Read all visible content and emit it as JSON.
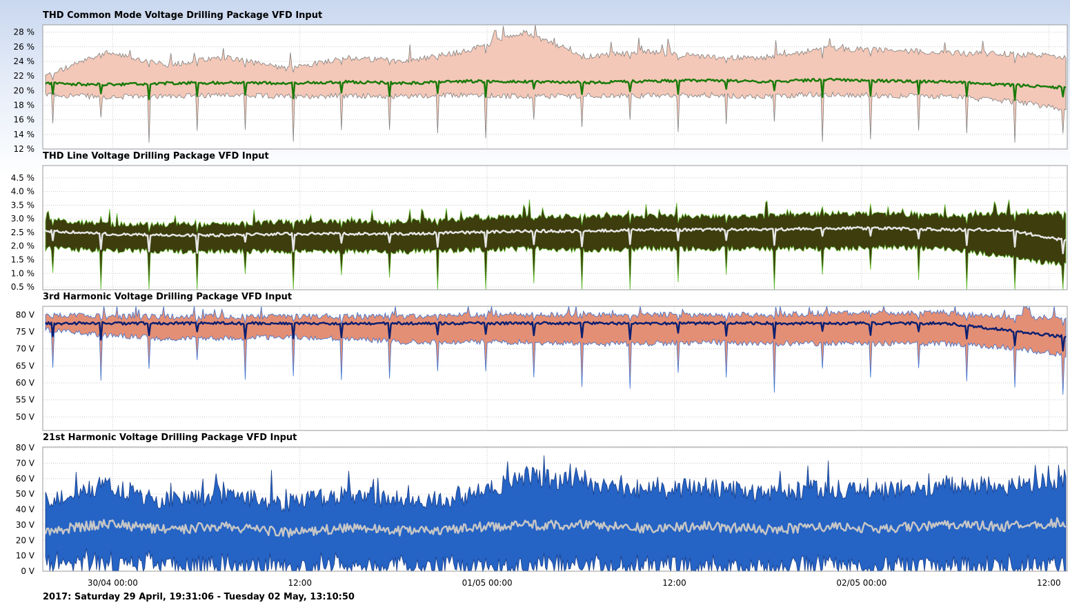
{
  "footer": "2017: Saturday 29 April, 19:31:06 - Tuesday 02 May, 13:10:50",
  "colors": {
    "plot_bg": "#ffffff",
    "grid": "#c8c8c8",
    "frame": "#9a9a9a"
  },
  "x_axis": {
    "start": "2017-04-29 19:31:06",
    "end": "2017-05-02 13:10:50",
    "ticks": [
      {
        "time": "2017-04-30 00:00",
        "label": "30/04 00:00"
      },
      {
        "time": "2017-04-30 12:00",
        "label": "12:00"
      },
      {
        "time": "2017-05-01 00:00",
        "label": "01/05 00:00"
      },
      {
        "time": "2017-05-01 12:00",
        "label": "12:00"
      },
      {
        "time": "2017-05-02 00:00",
        "label": "02/05 00:00"
      },
      {
        "time": "2017-05-02 12:00",
        "label": "12:00"
      }
    ]
  },
  "chart_data": [
    {
      "type": "area",
      "title": "THD Common Mode Voltage Drilling Package VFD Input",
      "y_unit": "%",
      "ylim": [
        12,
        29
      ],
      "y_ticks": [
        "12 %",
        "14 %",
        "16 %",
        "18 %",
        "20 %",
        "22 %",
        "24 %",
        "26 %",
        "28 %"
      ],
      "y_tick_values": [
        12,
        14,
        16,
        18,
        20,
        22,
        24,
        26,
        28
      ],
      "grid": true,
      "series": [
        {
          "role": "max",
          "values": [
            22.0,
            25.2,
            23.5,
            24.6,
            23.0,
            24.5,
            24.0,
            25.4,
            28.0,
            24.6,
            25.3,
            24.6,
            24.4,
            25.8,
            25.5,
            25.2,
            25.0,
            24.7
          ]
        },
        {
          "role": "avg",
          "values": [
            21.0,
            20.8,
            21.0,
            21.1,
            21.0,
            21.2,
            21.0,
            21.3,
            21.2,
            21.1,
            21.3,
            21.4,
            21.2,
            21.5,
            21.3,
            21.2,
            20.8,
            20.4
          ]
        },
        {
          "role": "min",
          "values": [
            19.5,
            19.1,
            19.3,
            19.3,
            19.2,
            19.3,
            19.2,
            19.4,
            19.2,
            19.3,
            19.3,
            19.4,
            19.2,
            19.5,
            19.3,
            19.2,
            18.6,
            17.5
          ]
        }
      ]
    },
    {
      "type": "area",
      "title": "THD Line Voltage Drilling Package VFD Input",
      "y_unit": "%",
      "ylim": [
        0.4,
        4.95
      ],
      "y_ticks": [
        "0.5 %",
        "1.0 %",
        "1.5 %",
        "2.0 %",
        "2.5 %",
        "3.0 %",
        "3.5 %",
        "4.0 %",
        "4.5 %"
      ],
      "y_tick_values": [
        0.5,
        1.0,
        1.5,
        2.0,
        2.5,
        3.0,
        3.5,
        4.0,
        4.5
      ],
      "grid": true,
      "series": [
        {
          "role": "max",
          "values": [
            3.0,
            2.8,
            2.8,
            2.8,
            2.9,
            2.9,
            2.9,
            3.0,
            3.1,
            3.1,
            3.1,
            3.1,
            3.1,
            3.2,
            3.2,
            3.1,
            3.2,
            3.2
          ]
        },
        {
          "role": "avg",
          "values": [
            2.55,
            2.45,
            2.4,
            2.4,
            2.45,
            2.45,
            2.45,
            2.5,
            2.55,
            2.55,
            2.6,
            2.6,
            2.6,
            2.65,
            2.65,
            2.6,
            2.6,
            2.2
          ]
        },
        {
          "role": "min",
          "values": [
            1.9,
            1.85,
            1.8,
            1.8,
            1.8,
            1.8,
            1.8,
            1.85,
            1.9,
            1.85,
            1.9,
            1.9,
            1.9,
            1.9,
            1.95,
            1.9,
            1.6,
            1.3
          ]
        }
      ]
    },
    {
      "type": "area",
      "title": "3rd Harmonic Voltage Drilling Package VFD Input",
      "y_unit": "V",
      "ylim": [
        46,
        82.5
      ],
      "y_ticks": [
        "50 V",
        "55 V",
        "60 V",
        "65 V",
        "70 V",
        "75 V",
        "80 V"
      ],
      "y_tick_values": [
        50,
        55,
        60,
        65,
        70,
        75,
        80
      ],
      "grid": true,
      "series": [
        {
          "role": "max",
          "values": [
            80.0,
            79.5,
            79.5,
            79.5,
            79.5,
            79.5,
            79.5,
            80.0,
            80.0,
            80.0,
            80.0,
            80.0,
            80.0,
            80.5,
            80.5,
            80.5,
            79.5,
            79.0
          ]
        },
        {
          "role": "avg",
          "values": [
            77.5,
            77.5,
            77.5,
            77.5,
            77.5,
            77.5,
            77.5,
            77.5,
            77.5,
            77.5,
            77.5,
            77.5,
            77.5,
            77.5,
            77.5,
            77.5,
            75.5,
            73.5
          ]
        },
        {
          "role": "min",
          "values": [
            75.5,
            74.0,
            73.0,
            73.0,
            73.5,
            73.0,
            72.0,
            72.0,
            72.0,
            71.5,
            71.5,
            72.0,
            71.5,
            71.5,
            71.5,
            71.5,
            70.5,
            68.0
          ]
        }
      ]
    },
    {
      "type": "area",
      "title": "21st Harmonic Voltage Drilling Package VFD Input",
      "y_unit": "V",
      "ylim": [
        0,
        80.5
      ],
      "y_ticks": [
        "0 V",
        "10 V",
        "20 V",
        "30 V",
        "40 V",
        "50 V",
        "60 V",
        "70 V",
        "80 V"
      ],
      "y_tick_values": [
        0,
        10,
        20,
        30,
        40,
        50,
        60,
        70,
        80
      ],
      "grid": true,
      "series": [
        {
          "role": "max",
          "values": [
            45,
            55,
            46,
            50,
            44,
            50,
            46,
            48,
            62,
            56,
            52,
            55,
            50,
            54,
            52,
            56,
            55,
            60
          ]
        },
        {
          "role": "avg",
          "values": [
            26,
            31,
            27,
            29,
            25,
            28,
            26,
            28,
            30,
            30,
            28,
            29,
            27,
            29,
            28,
            30,
            29,
            32
          ]
        },
        {
          "role": "min",
          "values": [
            8,
            9,
            7,
            7,
            6,
            7,
            6,
            7,
            6,
            7,
            6,
            7,
            6,
            7,
            6,
            7,
            6,
            7
          ]
        }
      ]
    }
  ],
  "panel_colors": [
    {
      "band": "#f3c8b8",
      "band_stroke": "#7f7f7f",
      "avg": "#1a7a0a"
    },
    {
      "band": "#3d3d0e",
      "band_stroke": "#5fb82a",
      "avg": "#e6e6e6"
    },
    {
      "band": "#e38f76",
      "band_stroke": "#3a6fd0",
      "avg": "#0b1f70"
    },
    {
      "band": "#2563c4",
      "band_stroke": "#1a3f8a",
      "avg": "#c6c6c6"
    }
  ]
}
